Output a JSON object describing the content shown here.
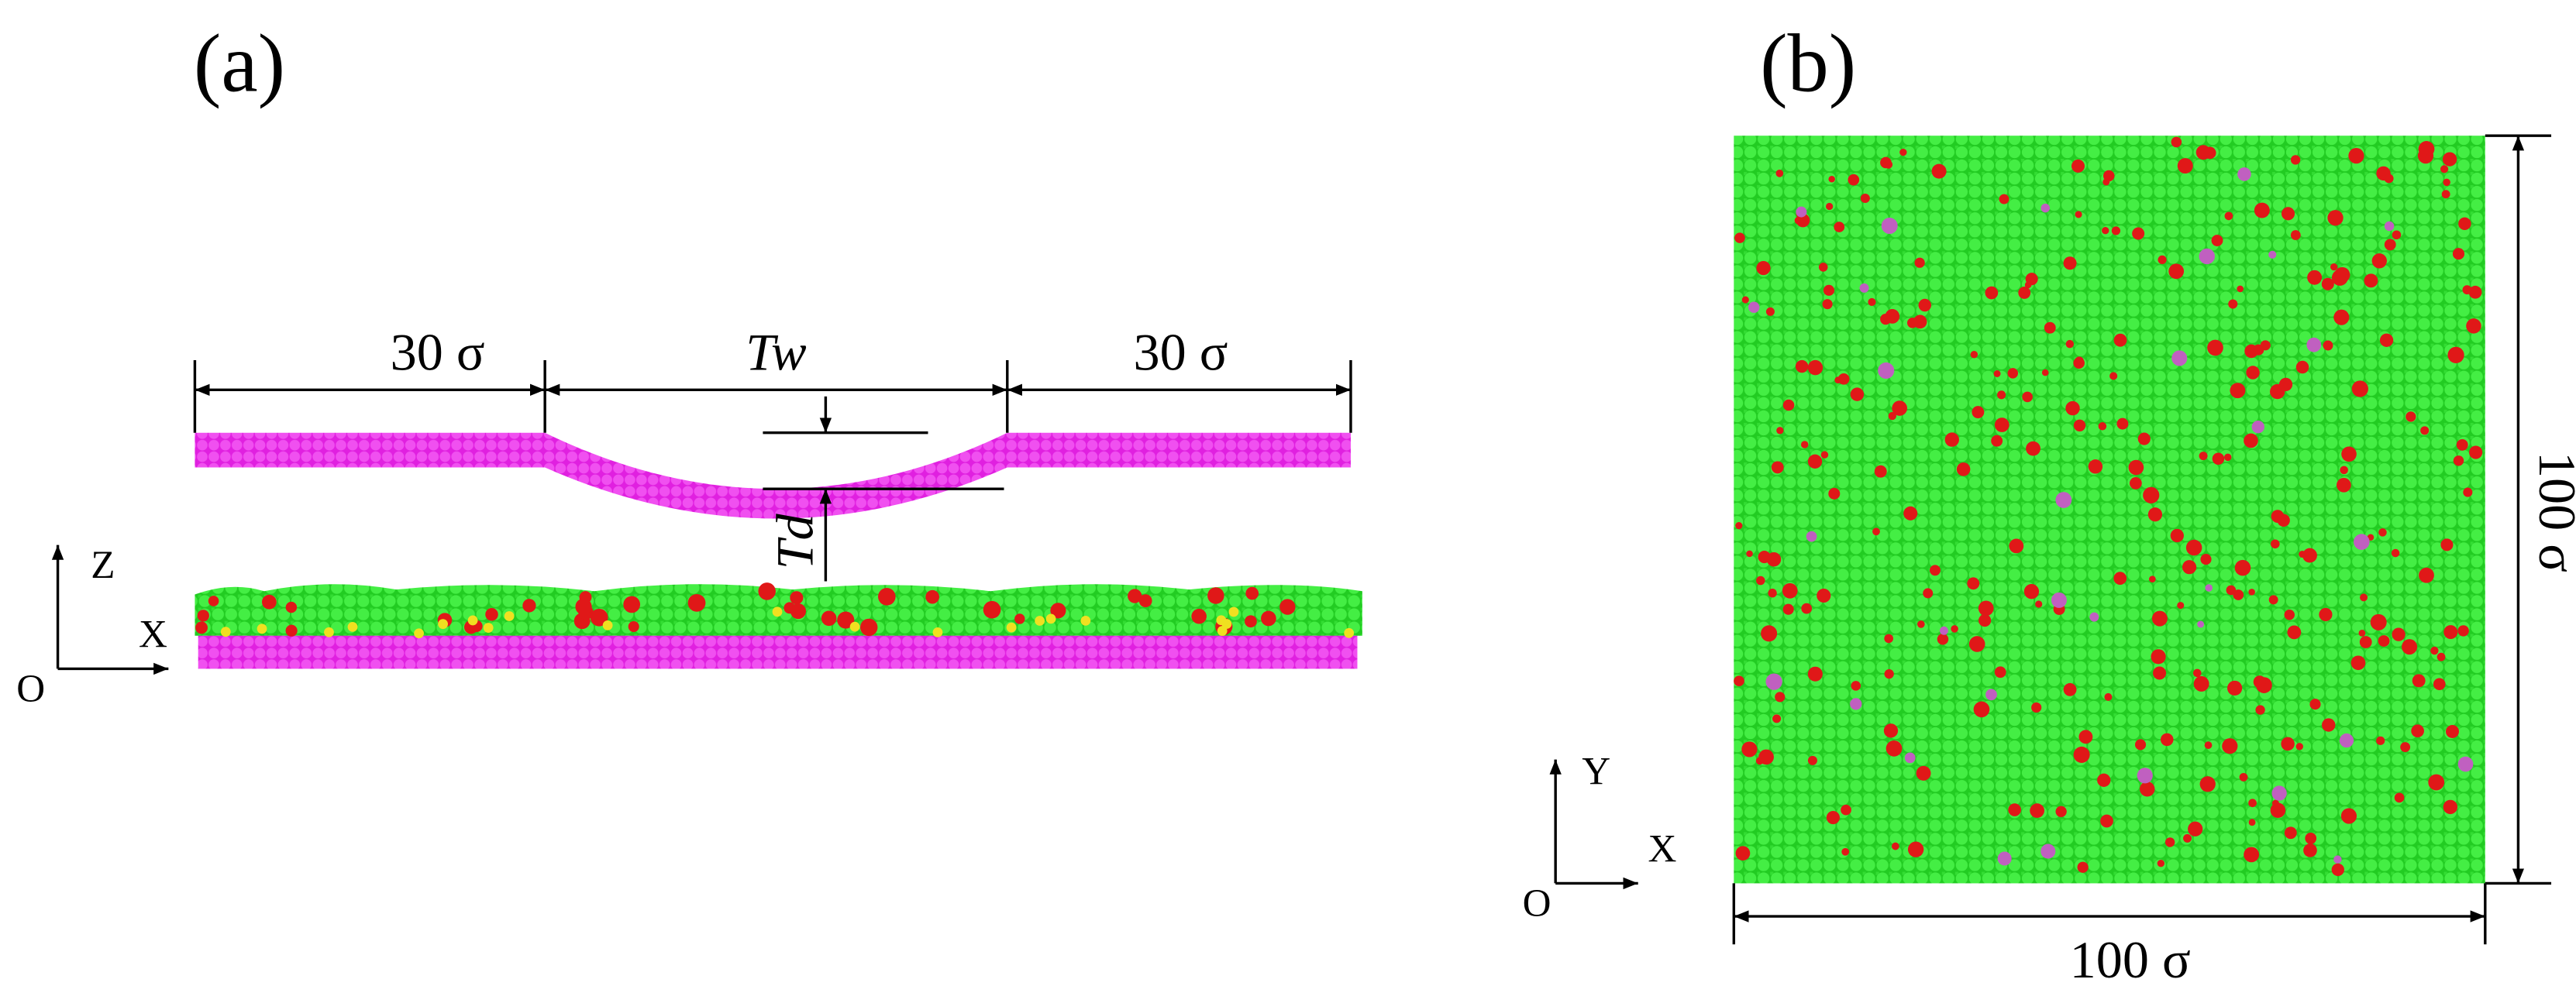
{
  "panel_a": {
    "label": "(a)",
    "left_width": "30 σ",
    "tip_width": "Tw",
    "right_width": "30 σ",
    "tip_depth": "Td",
    "axes": {
      "vertical": "Z",
      "horizontal": "X",
      "origin": "O"
    }
  },
  "panel_b": {
    "label": "(b)",
    "height": "100 σ",
    "width": "100 σ",
    "axes": {
      "vertical": "Y",
      "horizontal": "X",
      "origin": "O"
    }
  }
}
